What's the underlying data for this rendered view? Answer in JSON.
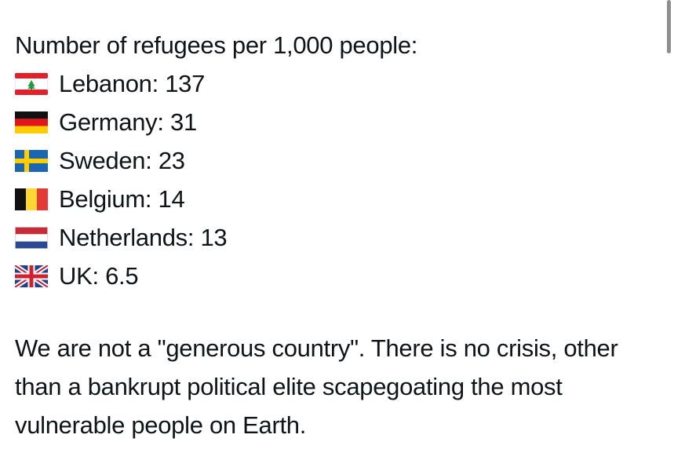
{
  "tweet": {
    "heading": "Number of refugees per 1,000 people:",
    "stats": [
      {
        "flag_icon": "lebanon-flag-icon",
        "text": "Lebanon: 137"
      },
      {
        "flag_icon": "germany-flag-icon",
        "text": "Germany: 31"
      },
      {
        "flag_icon": "sweden-flag-icon",
        "text": "Sweden: 23"
      },
      {
        "flag_icon": "belgium-flag-icon",
        "text": "Belgium: 14"
      },
      {
        "flag_icon": "netherlands-flag-icon",
        "text": "Netherlands: 13"
      },
      {
        "flag_icon": "uk-flag-icon",
        "text": "UK: 6.5"
      }
    ],
    "body": "We are not a \"generous country\". There is no crisis, other than a bankrupt political elite scapegoating the most vulnerable people on Earth."
  },
  "colors": {
    "text": "#0f1419",
    "background": "#ffffff",
    "scrollbar": "#8e8e8e"
  }
}
